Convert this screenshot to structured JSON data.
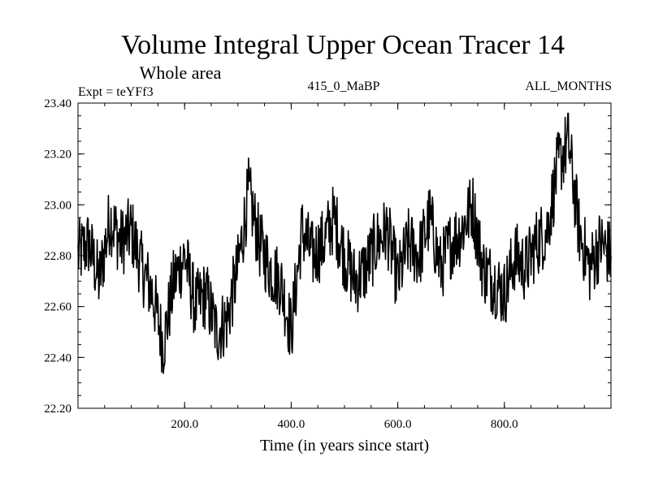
{
  "chart_data": {
    "type": "line",
    "title": "Volume Integral Upper Ocean Tracer 14",
    "subtitle": "Whole area",
    "experiment": "Expt = teYFf3",
    "period": "415_0_MaBP",
    "months": "ALL_MONTHS",
    "xlabel": "Time (in years since start)",
    "ylabel": "",
    "xlim": [
      0,
      1000
    ],
    "ylim": [
      22.2,
      23.4
    ],
    "xticks": [
      200,
      400,
      600,
      800
    ],
    "xtick_labels": [
      "200.0",
      "400.0",
      "600.0",
      "800.0"
    ],
    "yticks": [
      22.2,
      22.4,
      22.6,
      22.8,
      23.0,
      23.2,
      23.4
    ],
    "ytick_labels": [
      "22.20",
      "22.40",
      "22.60",
      "22.80",
      "23.00",
      "23.20",
      "23.40"
    ],
    "grid": false,
    "series": [
      {
        "name": "Tracer 14",
        "x": [
          0,
          20,
          40,
          60,
          80,
          100,
          120,
          140,
          160,
          180,
          200,
          220,
          240,
          260,
          280,
          300,
          320,
          340,
          360,
          380,
          400,
          420,
          440,
          460,
          480,
          500,
          520,
          540,
          560,
          580,
          600,
          620,
          640,
          660,
          680,
          700,
          720,
          740,
          760,
          780,
          800,
          820,
          840,
          860,
          880,
          900,
          920,
          940,
          960,
          980,
          1000
        ],
        "values": [
          22.8,
          22.85,
          22.7,
          22.95,
          22.85,
          22.9,
          22.75,
          22.65,
          22.45,
          22.7,
          22.8,
          22.6,
          22.65,
          22.5,
          22.55,
          22.75,
          23.05,
          22.85,
          22.75,
          22.7,
          22.5,
          22.9,
          22.8,
          22.85,
          22.95,
          22.8,
          22.7,
          22.75,
          22.85,
          22.9,
          22.7,
          22.85,
          22.8,
          22.95,
          22.75,
          22.85,
          22.9,
          23.0,
          22.75,
          22.7,
          22.65,
          22.8,
          22.75,
          22.85,
          22.9,
          23.15,
          23.25,
          22.9,
          22.75,
          22.85,
          22.8
        ]
      }
    ]
  }
}
